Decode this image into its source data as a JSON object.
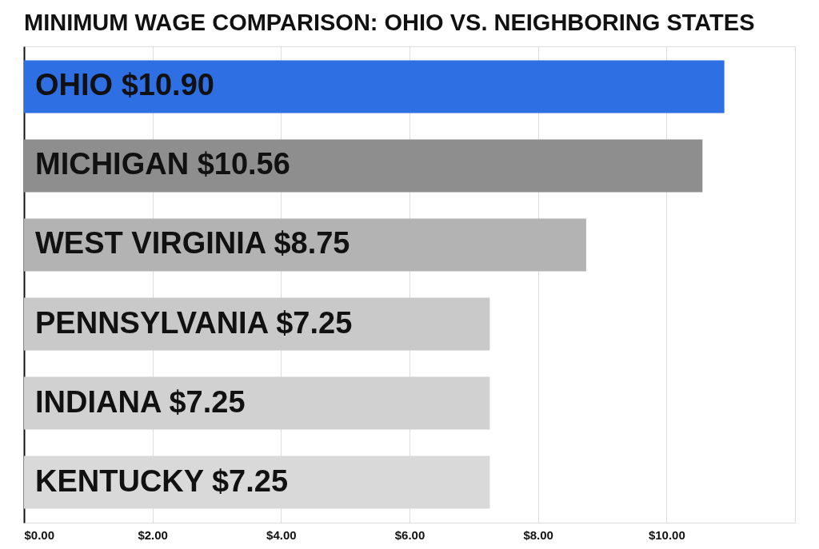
{
  "chart_data": {
    "type": "bar",
    "orientation": "horizontal",
    "title": "MINIMUM WAGE COMPARISON: OHIO VS. NEIGHBORING STATES",
    "categories": [
      "OHIO",
      "MICHIGAN",
      "WEST VIRGINIA",
      "PENNSYLVANIA",
      "INDIANA",
      "KENTUCKY"
    ],
    "values": [
      10.9,
      10.56,
      8.75,
      7.25,
      7.25,
      7.25
    ],
    "value_labels": [
      "$10.90",
      "$10.56",
      "$8.75",
      "$7.25",
      "$7.25",
      "$7.25"
    ],
    "colors": [
      "#2f6fe4",
      "#8e8e8e",
      "#b3b3b3",
      "#c9c9c9",
      "#d1d1d1",
      "#d9d9d9"
    ],
    "xlim": [
      0,
      12
    ],
    "xticks": [
      {
        "value": 0,
        "label": "$0.00"
      },
      {
        "value": 2,
        "label": "$2.00"
      },
      {
        "value": 4,
        "label": "$4.00"
      },
      {
        "value": 6,
        "label": "$6.00"
      },
      {
        "value": 8,
        "label": "$8.00"
      },
      {
        "value": 10,
        "label": "$10.00"
      },
      {
        "value": 12,
        "label": null
      }
    ],
    "grid": "x",
    "tick_labels": "x"
  }
}
